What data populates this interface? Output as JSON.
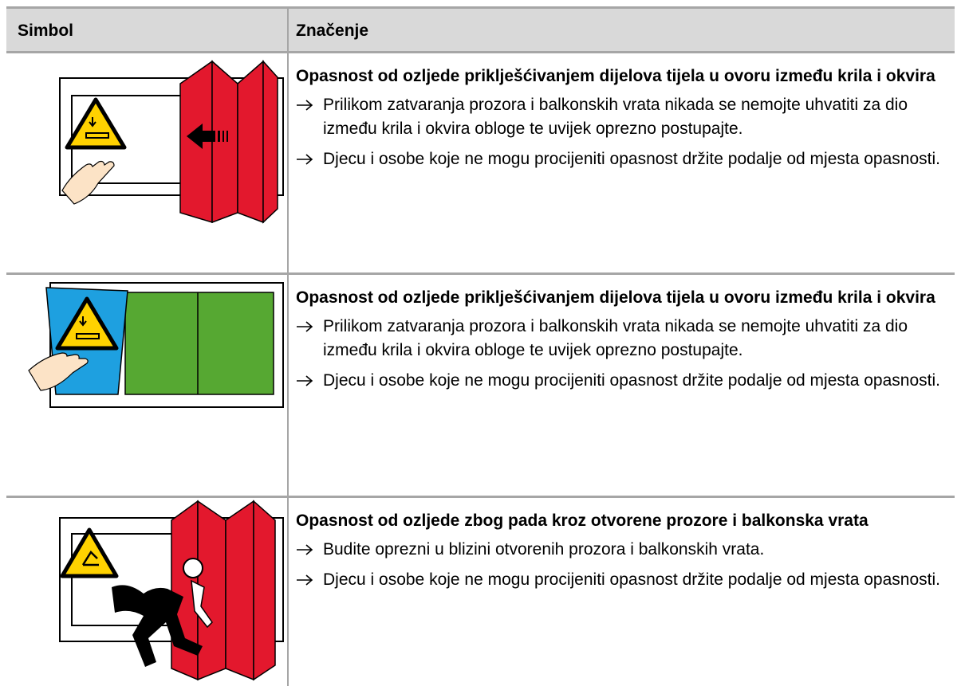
{
  "table": {
    "header": [
      "Simbol",
      "Značenje"
    ],
    "rows": [
      {
        "title": "Opasnost od ozljede priklješćivanjem dijelova tijela u ovoru između krila i okvira",
        "bullets": [
          "Prilikom zatvaranja prozora i balkonskih vrata nikada se nemojte uhvatiti za dio između krila i okvira obloge te uvijek oprezno postupajte.",
          "Djecu i osobe koje ne mogu procijeniti opasnost držite podalje od mjesta opasnosti."
        ]
      },
      {
        "title": "Opasnost od ozljede priklješćivanjem dijelova tijela u ovoru između krila i okvira",
        "bullets": [
          "Prilikom zatvaranja prozora i balkonskih vrata nikada se nemojte uhvatiti za dio između krila i okvira obloge te uvijek oprezno postupajte.",
          "Djecu i osobe koje ne mogu procijeniti opasnost držite podalje od mjesta opasnosti."
        ]
      },
      {
        "title": "Opasnost od ozljede zbog pada kroz otvorene prozore i balkonska vrata",
        "bullets": [
          "Budite oprezni u blizini otvorenih prozora i balkonskih vrata.",
          "Djecu i osobe koje ne mogu procijeniti opasnost držite podalje od mjesta opasnosti."
        ]
      }
    ]
  }
}
